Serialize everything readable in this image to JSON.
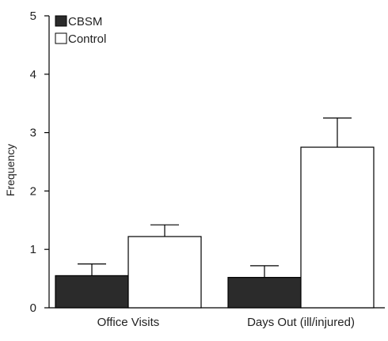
{
  "chart_data": {
    "type": "bar",
    "ylabel": "Frequency",
    "xlabel": "",
    "ylim": [
      0,
      5
    ],
    "yticks": [
      "0",
      "1",
      "2",
      "3",
      "4",
      "5"
    ],
    "categories": [
      "Office Visits",
      "Days Out (ill/injured)"
    ],
    "series": [
      {
        "name": "CBSM",
        "color": "#2b2b2b",
        "fill": "solid",
        "values": [
          0.55,
          0.52
        ],
        "errors": [
          0.2,
          0.2
        ]
      },
      {
        "name": "Control",
        "color": "#ffffff",
        "fill": "outline",
        "values": [
          1.22,
          2.75
        ],
        "errors": [
          0.2,
          0.5
        ]
      }
    ],
    "error_bars": "upper-only",
    "legend_position": "top-left",
    "grid": false
  }
}
